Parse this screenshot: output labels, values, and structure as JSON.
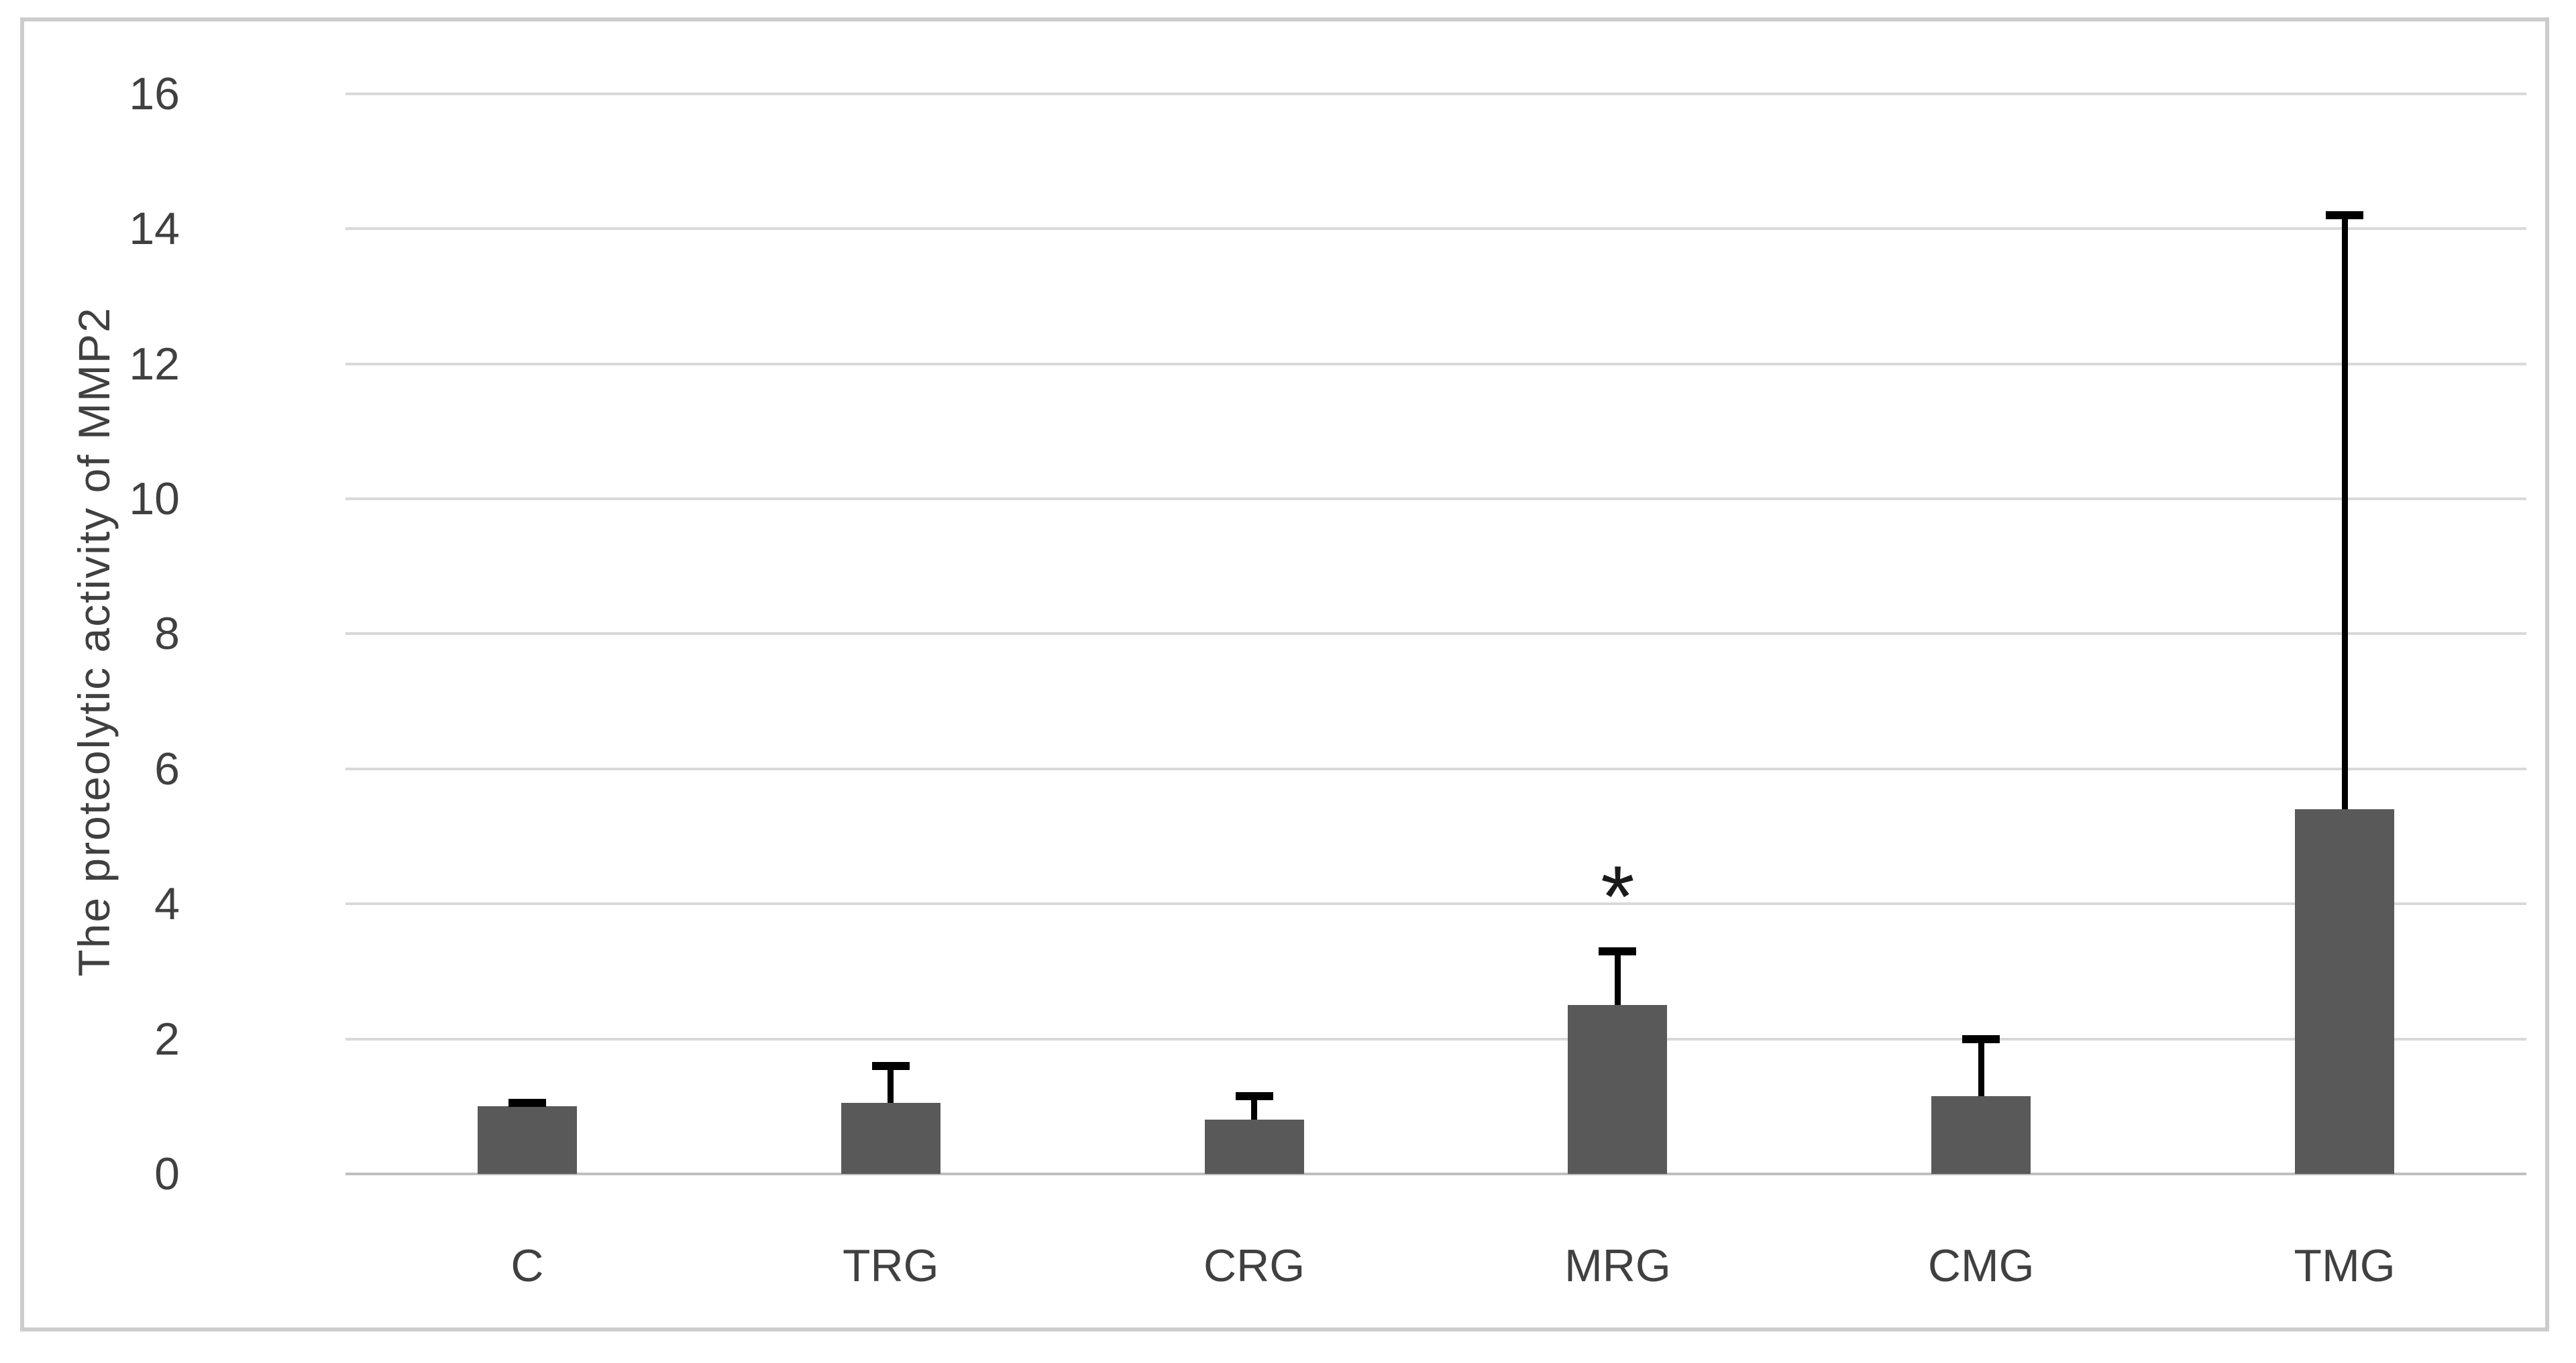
{
  "chart": {
    "background_color": "#ffffff",
    "frame_border_color": "#cccccc",
    "bar_color": "#595959",
    "gridline_color": "#d9d9d9",
    "axis_line_color": "#bfbfbf",
    "error_bar_color": "#000000",
    "text_color": "#404040"
  },
  "chart_data": {
    "type": "bar",
    "title": "",
    "xlabel": "",
    "ylabel": "The proteolytic activity of MMP2",
    "categories": [
      "C",
      "TRG",
      "CRG",
      "MRG",
      "CMG",
      "TMG"
    ],
    "values": [
      1.0,
      1.05,
      0.8,
      2.5,
      1.15,
      5.4
    ],
    "error_top_values": [
      1.05,
      1.6,
      1.15,
      3.3,
      2.0,
      14.2
    ],
    "annotations": [
      {
        "category": "MRG",
        "text": "*",
        "y": 4.2
      }
    ],
    "ylim": [
      0,
      16
    ],
    "yticks": [
      0,
      2,
      4,
      6,
      8,
      10,
      12,
      14,
      16
    ],
    "grid": true,
    "legend": false,
    "error_bars": "upper only, black, capped"
  }
}
